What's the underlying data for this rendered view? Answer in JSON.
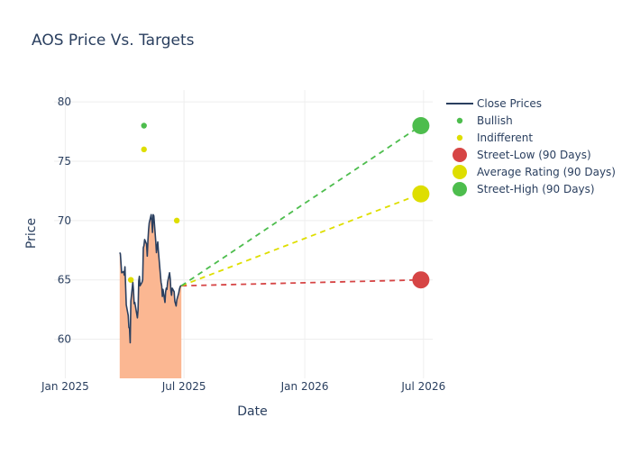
{
  "chart_data": {
    "type": "line",
    "title": "AOS Price Vs. Targets",
    "xlabel": "Date",
    "ylabel": "Price",
    "x_ticks": [
      "Jan 2025",
      "Jul 2025",
      "Jan 2026",
      "Jul 2026"
    ],
    "x_tick_dates": [
      "2025-01-01",
      "2025-07-01",
      "2026-01-01",
      "2026-07-01"
    ],
    "y_ticks": [
      60,
      65,
      70,
      75,
      80
    ],
    "xlim": [
      "2024-12-15",
      "2026-07-15"
    ],
    "ylim": [
      56.7,
      81
    ],
    "grid": true,
    "legend_position": "top-right",
    "colors": {
      "close": "#2a3f5f",
      "fill": "#fbb792",
      "bullish": "#4dbd4d",
      "indifferent": "#dede00",
      "low": "#d64545",
      "avg": "#dede00",
      "high": "#4dbd4d",
      "grid": "#eeeeee",
      "text": "#2a3f5f"
    },
    "close_prices": [
      [
        "2025-03-25",
        67.3
      ],
      [
        "2025-03-26",
        67.2
      ],
      [
        "2025-03-27",
        66.4
      ],
      [
        "2025-03-28",
        65.6
      ],
      [
        "2025-03-31",
        65.7
      ],
      [
        "2025-04-01",
        65.4
      ],
      [
        "2025-04-02",
        66.1
      ],
      [
        "2025-04-03",
        64.5
      ],
      [
        "2025-04-04",
        62.9
      ],
      [
        "2025-04-07",
        62.0
      ],
      [
        "2025-04-08",
        61.0
      ],
      [
        "2025-04-09",
        60.9
      ],
      [
        "2025-04-10",
        59.7
      ],
      [
        "2025-04-11",
        63.2
      ],
      [
        "2025-04-14",
        64.8
      ],
      [
        "2025-04-15",
        64.1
      ],
      [
        "2025-04-16",
        63.0
      ],
      [
        "2025-04-17",
        63.1
      ],
      [
        "2025-04-21",
        61.8
      ],
      [
        "2025-04-22",
        62.5
      ],
      [
        "2025-04-23",
        64.9
      ],
      [
        "2025-04-24",
        65.3
      ],
      [
        "2025-04-25",
        64.5
      ],
      [
        "2025-04-28",
        64.8
      ],
      [
        "2025-04-29",
        65.0
      ],
      [
        "2025-04-30",
        67.7
      ],
      [
        "2025-05-01",
        67.9
      ],
      [
        "2025-05-02",
        68.4
      ],
      [
        "2025-05-05",
        68.0
      ],
      [
        "2025-05-06",
        67.0
      ],
      [
        "2025-05-07",
        68.3
      ],
      [
        "2025-05-08",
        69.2
      ],
      [
        "2025-05-09",
        69.8
      ],
      [
        "2025-05-12",
        70.5
      ],
      [
        "2025-05-13",
        69.9
      ],
      [
        "2025-05-14",
        69.0
      ],
      [
        "2025-05-15",
        70.5
      ],
      [
        "2025-05-16",
        70.4
      ],
      [
        "2025-05-19",
        68.2
      ],
      [
        "2025-05-20",
        67.3
      ],
      [
        "2025-05-21",
        67.8
      ],
      [
        "2025-05-22",
        68.2
      ],
      [
        "2025-05-23",
        67.4
      ],
      [
        "2025-05-27",
        64.8
      ],
      [
        "2025-05-28",
        64.5
      ],
      [
        "2025-05-29",
        63.6
      ],
      [
        "2025-05-30",
        64.2
      ],
      [
        "2025-06-02",
        63.1
      ],
      [
        "2025-06-03",
        64.0
      ],
      [
        "2025-06-04",
        64.3
      ],
      [
        "2025-06-05",
        64.2
      ],
      [
        "2025-06-06",
        64.8
      ],
      [
        "2025-06-09",
        65.6
      ],
      [
        "2025-06-10",
        65.1
      ],
      [
        "2025-06-11",
        64.1
      ],
      [
        "2025-06-12",
        63.7
      ],
      [
        "2025-06-13",
        64.3
      ],
      [
        "2025-06-16",
        64.0
      ],
      [
        "2025-06-17",
        63.2
      ],
      [
        "2025-06-18",
        63.0
      ],
      [
        "2025-06-19",
        62.8
      ],
      [
        "2025-06-20",
        63.3
      ],
      [
        "2025-06-23",
        63.9
      ],
      [
        "2025-06-24",
        64.2
      ],
      [
        "2025-06-25",
        64.4
      ],
      [
        "2025-06-26",
        64.5
      ],
      [
        "2025-06-27",
        64.5
      ]
    ],
    "bullish_points": [
      [
        "2025-05-01",
        78.0
      ]
    ],
    "indifferent_points": [
      [
        "2025-04-11",
        65.0
      ],
      [
        "2025-05-01",
        76.0
      ],
      [
        "2025-06-20",
        70.0
      ]
    ],
    "target_start": [
      "2025-06-27",
      64.5
    ],
    "targets": {
      "date": "2026-06-27",
      "street_low": 65.0,
      "average": 72.25,
      "street_high": 78.0
    },
    "legend": [
      {
        "label": "Close Prices",
        "kind": "line",
        "color_key": "close"
      },
      {
        "label": "Bullish",
        "kind": "small-dot",
        "color_key": "bullish"
      },
      {
        "label": "Indifferent",
        "kind": "small-dot",
        "color_key": "indifferent"
      },
      {
        "label": "Street-Low (90 Days)",
        "kind": "big-dot",
        "color_key": "low"
      },
      {
        "label": "Average Rating (90 Days)",
        "kind": "big-dot",
        "color_key": "avg"
      },
      {
        "label": "Street-High (90 Days)",
        "kind": "big-dot",
        "color_key": "high"
      }
    ]
  }
}
